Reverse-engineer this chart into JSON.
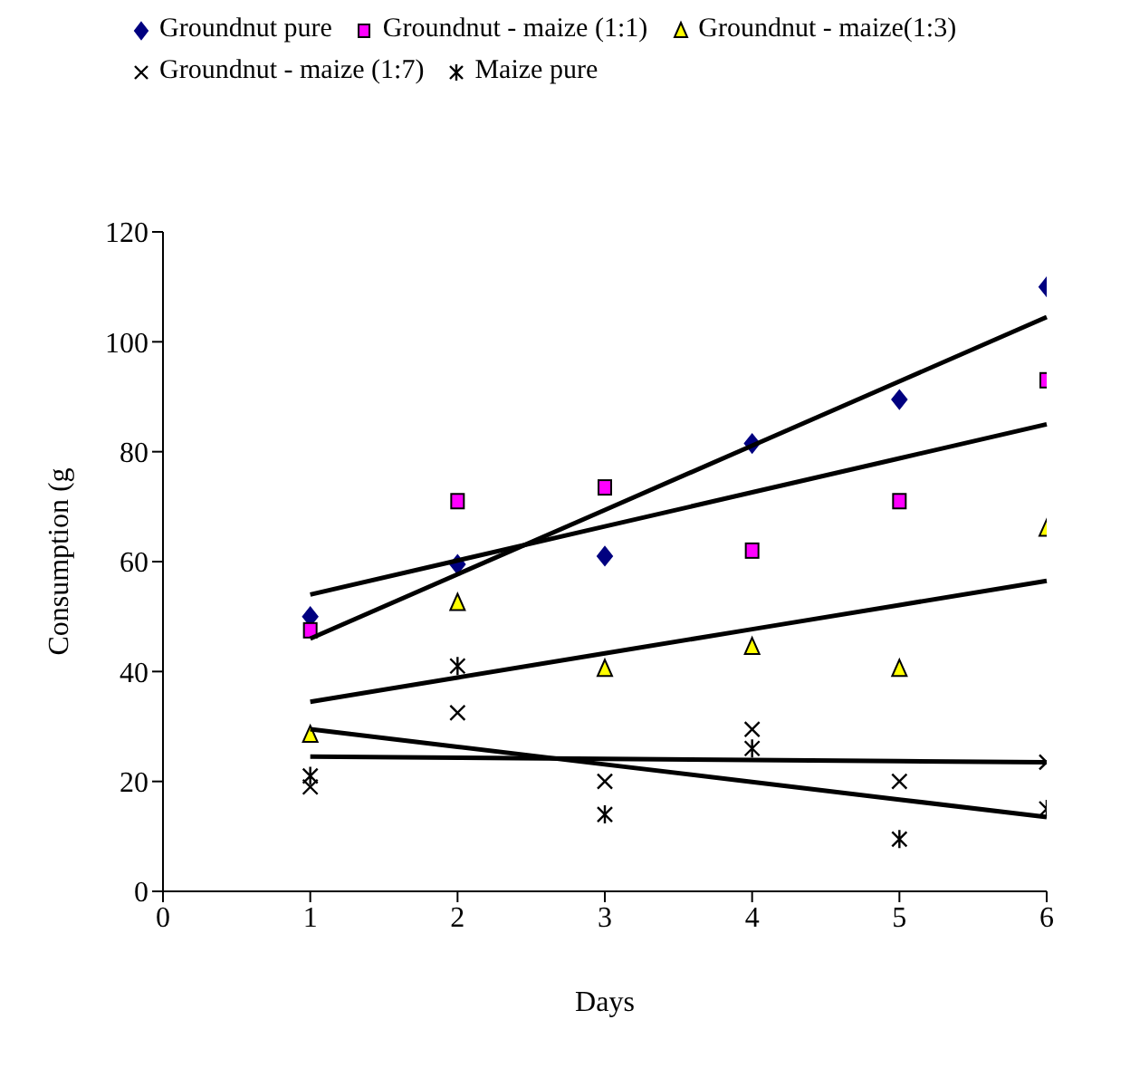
{
  "chart_data": {
    "type": "scatter",
    "xlabel": "Days",
    "ylabel": "Consumption (g",
    "x": [
      1,
      2,
      3,
      4,
      5,
      6
    ],
    "series": [
      {
        "name": "Groundnut pure",
        "color": "#000080",
        "marker": "diamond",
        "values": [
          50,
          59.5,
          61,
          81.5,
          89.5,
          110
        ]
      },
      {
        "name": "Groundnut - maize (1:1)",
        "color": "#ff00ff",
        "marker": "square",
        "values": [
          47.5,
          71,
          73.5,
          62,
          71,
          93
        ]
      },
      {
        "name": "Groundnut - maize(1:3)",
        "color": "#ffff00",
        "marker": "triangle",
        "values": [
          28.5,
          52.5,
          40.5,
          44.5,
          40.5,
          66
        ]
      },
      {
        "name": "Groundnut - maize (1:7)",
        "color": "#000000",
        "marker": "cross",
        "values": [
          19,
          32.5,
          20,
          29.5,
          20,
          23.5
        ]
      },
      {
        "name": "Maize pure",
        "color": "#000000",
        "values": [
          21,
          41,
          14,
          26,
          9.5,
          15
        ]
      },
      {
        "type": "line",
        "color": "#000000",
        "marker": "none",
        "values": [
          46,
          57.7,
          69.4,
          81.1,
          92.8,
          104.5
        ]
      },
      {
        "type": "line",
        "color": "#000000",
        "marker": "none",
        "values": [
          54,
          60.2,
          66.4,
          72.6,
          78.8,
          85
        ]
      },
      {
        "type": "line",
        "color": "#000000",
        "marker": "none",
        "values": [
          34.5,
          38.9,
          43.3,
          47.7,
          52.1,
          56.5
        ]
      },
      {
        "type": "line",
        "color": "#000000",
        "marker": "none",
        "values": [
          24.5,
          24.3,
          24.1,
          23.9,
          23.7,
          23.5
        ]
      },
      {
        "type": "line",
        "color": "#000000",
        "marker": "none",
        "values": [
          29.5,
          26.3,
          23.1,
          19.9,
          16.7,
          13.5
        ]
      }
    ],
    "xlim": [
      0,
      6
    ],
    "xticks": [
      0,
      1,
      2,
      3,
      4,
      5,
      6
    ],
    "ylim": [
      0,
      120
    ],
    "yticks": [
      0,
      20,
      40,
      60,
      80,
      100,
      120
    ],
    "grid": false,
    "legend": "top"
  }
}
